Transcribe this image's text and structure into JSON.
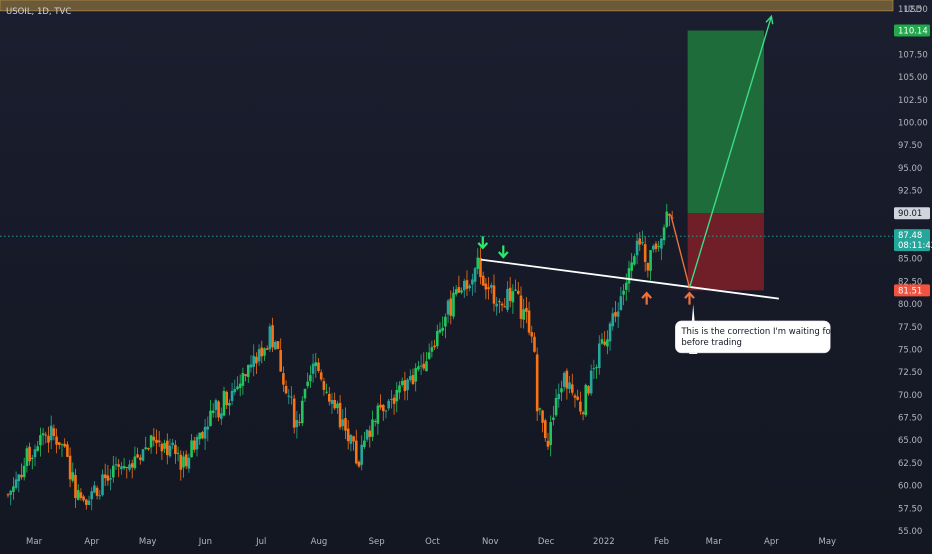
{
  "chart_data": {
    "type": "candlestick",
    "symbol": "USOIL, 1D, TVC",
    "currency": "USD",
    "ylim": [
      55,
      113.5
    ],
    "yticks": [
      "55.00",
      "57.50",
      "60.00",
      "62.50",
      "65.00",
      "67.50",
      "70.00",
      "72.50",
      "75.00",
      "77.50",
      "80.00",
      "82.50",
      "85.00",
      "87.50",
      "90.00",
      "92.50",
      "95.00",
      "97.50",
      "100.00",
      "102.50",
      "105.00",
      "107.50",
      "110.00",
      "112.50"
    ],
    "x_months": [
      "Mar",
      "Apr",
      "May",
      "Jun",
      "Jul",
      "Aug",
      "Sep",
      "Oct",
      "Nov",
      "Dec",
      "2022",
      "Feb",
      "Mar",
      "Apr",
      "May"
    ],
    "x_range": [
      "2021-02-15",
      "2022-06-01"
    ],
    "x_ticks": [
      "2021-03-01",
      "2021-04-01",
      "2021-05-01",
      "2021-06-01",
      "2021-07-01",
      "2021-08-01",
      "2021-09-01",
      "2021-10-01",
      "2021-11-01",
      "2021-12-01",
      "2022-01-01",
      "2022-02-01",
      "2022-03-01",
      "2022-04-01",
      "2022-05-01"
    ],
    "price_path": [
      [
        "2021-02-15",
        59.0
      ],
      [
        "2021-03-05",
        66.0
      ],
      [
        "2021-03-15",
        65.0
      ],
      [
        "2021-03-25",
        58.5
      ],
      [
        "2021-04-01",
        59.5
      ],
      [
        "2021-04-20",
        62.0
      ],
      [
        "2021-05-05",
        65.5
      ],
      [
        "2021-05-20",
        62.5
      ],
      [
        "2021-06-01",
        67.0
      ],
      [
        "2021-06-20",
        71.5
      ],
      [
        "2021-07-06",
        76.5
      ],
      [
        "2021-07-12",
        73.0
      ],
      [
        "2021-07-20",
        66.5
      ],
      [
        "2021-07-30",
        73.5
      ],
      [
        "2021-08-10",
        68.5
      ],
      [
        "2021-08-22",
        62.5
      ],
      [
        "2021-09-01",
        68.5
      ],
      [
        "2021-09-20",
        71.5
      ],
      [
        "2021-10-10",
        79.5
      ],
      [
        "2021-10-25",
        84.5
      ],
      [
        "2021-10-31",
        81.5
      ],
      [
        "2021-11-05",
        81.0
      ],
      [
        "2021-11-15",
        80.5
      ],
      [
        "2021-11-24",
        77.0
      ],
      [
        "2021-11-26",
        68.5
      ],
      [
        "2021-12-02",
        65.0
      ],
      [
        "2021-12-10",
        72.0
      ],
      [
        "2021-12-20",
        68.5
      ],
      [
        "2021-12-31",
        75.5
      ],
      [
        "2022-01-15",
        83.5
      ],
      [
        "2022-01-20",
        86.5
      ],
      [
        "2022-01-25",
        84.5
      ],
      [
        "2022-02-02",
        88.5
      ],
      [
        "2022-02-04",
        90.0
      ],
      [
        "2022-02-08",
        87.5
      ]
    ],
    "current_price": "87.48",
    "countdown": "08:11:42",
    "price_tags": {
      "stop": "90.01",
      "target": "110.14",
      "entry": "81.51"
    },
    "position": {
      "x_start": "2022-02-15",
      "x_end": "2022-03-28",
      "entry": 81.51,
      "stop": 90.01,
      "target": 110.14
    },
    "neckline": {
      "p1": [
        "2021-10-27",
        84.9
      ],
      "p2": [
        "2022-04-05",
        80.6
      ]
    },
    "down_arrow": {
      "from": [
        "2022-02-06",
        89.8
      ],
      "to": [
        "2022-02-16",
        81.8
      ]
    },
    "up_arrow": {
      "from": [
        "2022-02-16",
        81.8
      ],
      "to": [
        "2022-04-01",
        111.7
      ]
    },
    "callout_line": {
      "from": [
        "2022-02-18",
        80.0
      ],
      "to": [
        "2022-02-18",
        74.5
      ]
    },
    "markers": [
      {
        "kind": "down",
        "date": "2021-10-28",
        "price": 86.8,
        "color": "#2ee66e"
      },
      {
        "kind": "down",
        "date": "2021-11-08",
        "price": 85.8,
        "color": "#2ee66e"
      },
      {
        "kind": "up",
        "date": "2022-01-24",
        "price": 80.6,
        "color": "#f0703a"
      },
      {
        "kind": "up",
        "date": "2022-02-16",
        "price": 80.6,
        "color": "#f0703a"
      }
    ],
    "annotation": {
      "line1": "This is the correction I'm waiting for",
      "line2": "before trading",
      "date": "2022-02-10",
      "price": 75.5
    },
    "top_band": {
      "from": 113.5,
      "to": 112.3
    }
  },
  "colors": {
    "background": "#131722",
    "bull": "#26a69a",
    "bull_bright": "#22c55e",
    "bear": "#f97316",
    "target_zone": "#1f7a3c",
    "stop_zone": "#7a1f28",
    "neckline": "#ffffff",
    "projection": "#3ddc84",
    "correction": "#f0703a",
    "axis_text": "#b2b5be",
    "current_line": "#26a69a",
    "entry_tag": "#f05340",
    "band": "#6b5a3a"
  }
}
